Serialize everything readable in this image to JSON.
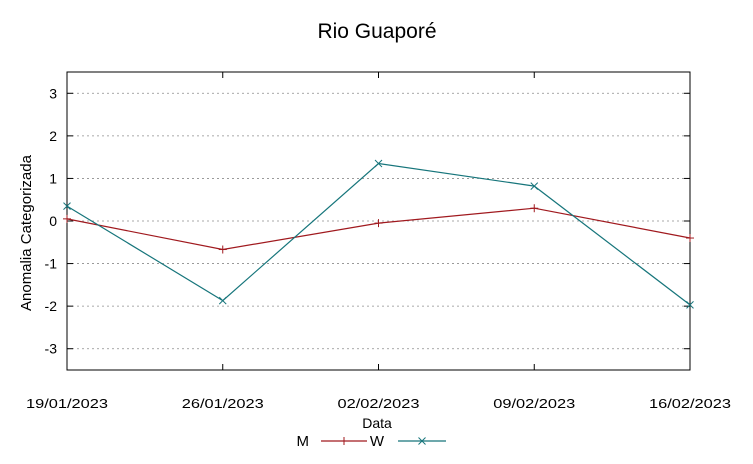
{
  "chart_data": {
    "type": "line",
    "title": "Rio Guaporé",
    "xlabel": "Data",
    "ylabel": "Anomalia Categorizada",
    "categories": [
      "19/01/2023",
      "26/01/2023",
      "02/02/2023",
      "09/02/2023",
      "16/02/2023"
    ],
    "ylim": [
      -3.5,
      3.5
    ],
    "yticks": [
      3,
      2,
      1,
      0,
      -1,
      -2,
      -3
    ],
    "grid": true,
    "legend_position": "bottom-center",
    "series": [
      {
        "name": "M",
        "values": [
          0.05,
          -0.67,
          -0.05,
          0.3,
          -0.4
        ],
        "color": "#a0191e",
        "marker": "plus"
      },
      {
        "name": "W",
        "values": [
          0.35,
          -1.87,
          1.35,
          0.82,
          -1.97
        ],
        "color": "#16757b",
        "marker": "cross"
      }
    ]
  }
}
